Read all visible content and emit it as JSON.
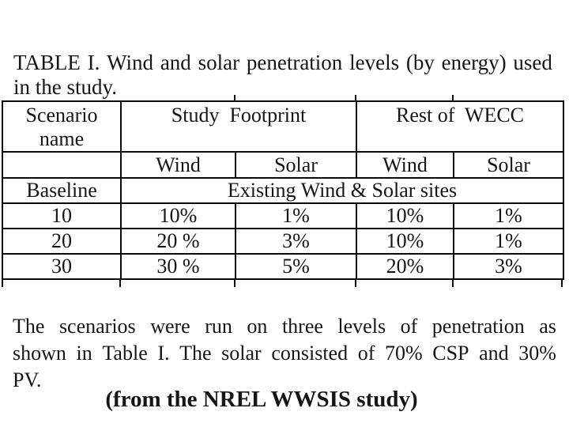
{
  "title": {
    "line1": "TABLE I. Wind and solar penetration levels (by energy) used",
    "line2": "in the study."
  },
  "table": {
    "scenario_header": "Scenario name",
    "study_footprint_header": "Study  Footprint",
    "rest_of_wecc_header": "Rest of  WECC",
    "sub_headers": [
      "Wind",
      "Solar",
      "Wind",
      "Solar"
    ],
    "baseline": {
      "name": "Baseline",
      "description": "Existing Wind & Solar sites"
    },
    "rows": [
      {
        "name": "10",
        "values": [
          "10%",
          "1%",
          "10%",
          "1%"
        ]
      },
      {
        "name": "20",
        "values": [
          "20 %",
          "3%",
          "10%",
          "1%"
        ]
      },
      {
        "name": "30",
        "values": [
          "30 %",
          "5%",
          "20%",
          "3%"
        ]
      }
    ]
  },
  "paragraph": {
    "line1": "The scenarios were run on three levels of penetration as",
    "line2": "shown in Table I. The solar consisted of 70% CSP and 30%",
    "line3": "PV."
  },
  "footer": {
    "caption": "(from the NREL WWSIS study)"
  },
  "colors": {
    "text": "#161616",
    "border": "#0a0a0a",
    "background": "#ffffff"
  }
}
